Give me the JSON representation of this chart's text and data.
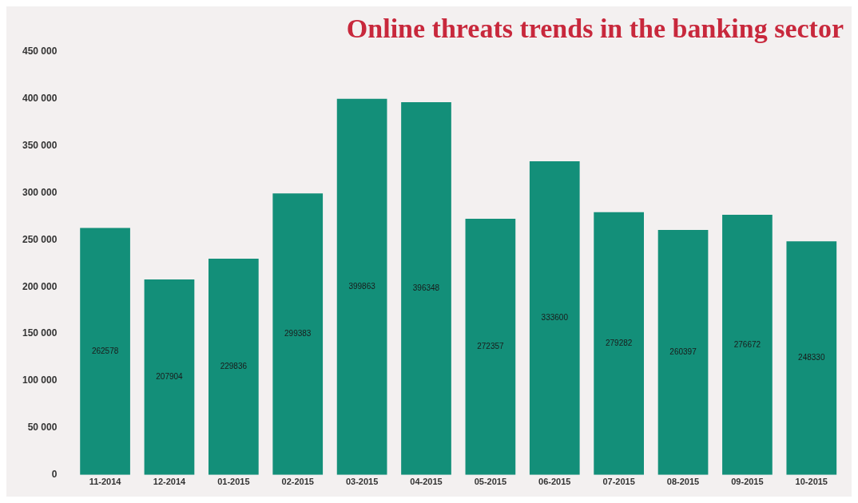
{
  "chart_data": {
    "type": "bar",
    "title": "Online threats trends in the banking sector",
    "categories": [
      "11-2014",
      "12-2014",
      "01-2015",
      "02-2015",
      "03-2015",
      "04-2015",
      "05-2015",
      "06-2015",
      "07-2015",
      "08-2015",
      "09-2015",
      "10-2015"
    ],
    "values": [
      262578,
      207904,
      229836,
      299383,
      399863,
      396348,
      272357,
      333600,
      279282,
      260397,
      276672,
      248330
    ],
    "color": "#138f79",
    "data_labels": true,
    "grid": false,
    "ylim": [
      0,
      450000
    ],
    "yticks": [
      {
        "value": 0,
        "label": "0"
      },
      {
        "value": 50000,
        "label": "50 000"
      },
      {
        "value": 100000,
        "label": "100 000"
      },
      {
        "value": 150000,
        "label": "150 000"
      },
      {
        "value": 200000,
        "label": "200 000"
      },
      {
        "value": 250000,
        "label": "250 000"
      },
      {
        "value": 300000,
        "label": "300 000"
      },
      {
        "value": 350000,
        "label": "350 000"
      },
      {
        "value": 400000,
        "label": "400 000"
      },
      {
        "value": 450000,
        "label": "450 000"
      }
    ]
  }
}
